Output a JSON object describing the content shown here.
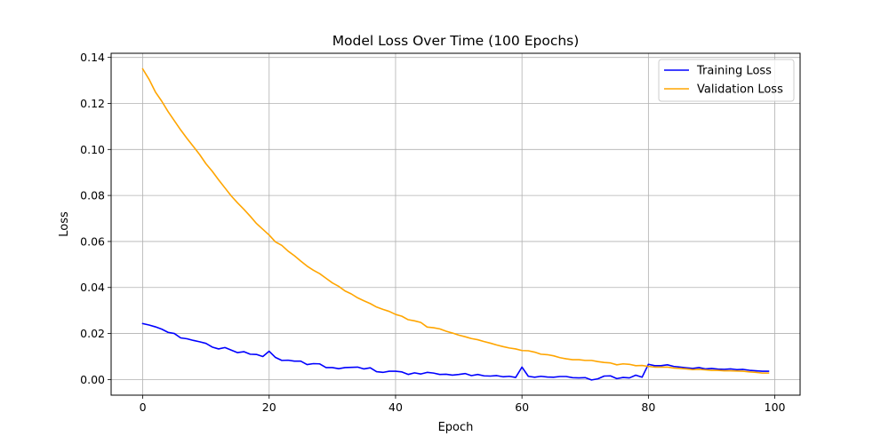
{
  "chart_data": {
    "type": "line",
    "title": "Model Loss Over Time (100 Epochs)",
    "xlabel": "Epoch",
    "ylabel": "Loss",
    "xlim": [
      -5,
      104
    ],
    "ylim": [
      -0.0068,
      0.1418
    ],
    "xticks": [
      0,
      20,
      40,
      60,
      80,
      100
    ],
    "xtick_labels": [
      "0",
      "20",
      "40",
      "60",
      "80",
      "100"
    ],
    "yticks": [
      0.0,
      0.02,
      0.04,
      0.06,
      0.08,
      0.1,
      0.12,
      0.14
    ],
    "ytick_labels": [
      "0.00",
      "0.02",
      "0.04",
      "0.06",
      "0.08",
      "0.10",
      "0.12",
      "0.14"
    ],
    "grid": true,
    "legend_position": "top-right",
    "x": [
      0,
      1,
      2,
      3,
      4,
      5,
      6,
      7,
      8,
      9,
      10,
      11,
      12,
      13,
      14,
      15,
      16,
      17,
      18,
      19,
      20,
      21,
      22,
      23,
      24,
      25,
      26,
      27,
      28,
      29,
      30,
      31,
      32,
      33,
      34,
      35,
      36,
      37,
      38,
      39,
      40,
      41,
      42,
      43,
      44,
      45,
      46,
      47,
      48,
      49,
      50,
      51,
      52,
      53,
      54,
      55,
      56,
      57,
      58,
      59,
      60,
      61,
      62,
      63,
      64,
      65,
      66,
      67,
      68,
      69,
      70,
      71,
      72,
      73,
      74,
      75,
      76,
      77,
      78,
      79,
      80,
      81,
      82,
      83,
      84,
      85,
      86,
      87,
      88,
      89,
      90,
      91,
      92,
      93,
      94,
      95,
      96,
      97,
      98,
      99
    ],
    "series": [
      {
        "name": "Training Loss",
        "color": "#0000ff",
        "values": [
          0.0243,
          0.0237,
          0.0229,
          0.0219,
          0.0205,
          0.02,
          0.0181,
          0.0177,
          0.017,
          0.0164,
          0.0157,
          0.0141,
          0.0133,
          0.0139,
          0.0128,
          0.0117,
          0.0121,
          0.011,
          0.0109,
          0.01,
          0.0123,
          0.0096,
          0.0083,
          0.0084,
          0.008,
          0.008,
          0.0065,
          0.0069,
          0.0068,
          0.0052,
          0.0052,
          0.0047,
          0.0052,
          0.0053,
          0.0054,
          0.0046,
          0.0051,
          0.0034,
          0.0031,
          0.0036,
          0.0036,
          0.0033,
          0.0022,
          0.0029,
          0.0024,
          0.0031,
          0.0028,
          0.0022,
          0.0023,
          0.0019,
          0.0022,
          0.0026,
          0.0017,
          0.0022,
          0.0016,
          0.0015,
          0.0017,
          0.0012,
          0.0014,
          0.0009,
          0.0054,
          0.0014,
          0.001,
          0.0014,
          0.0011,
          0.001,
          0.0013,
          0.0013,
          0.0008,
          0.0007,
          0.0008,
          -0.0002,
          0.0003,
          0.0015,
          0.0016,
          0.0004,
          0.0009,
          0.0007,
          0.0019,
          0.001,
          0.0066,
          0.006,
          0.006,
          0.0064,
          0.0057,
          0.0054,
          0.0051,
          0.0048,
          0.0052,
          0.0046,
          0.0048,
          0.0045,
          0.0044,
          0.0046,
          0.0043,
          0.0044,
          0.004,
          0.0038,
          0.0036,
          0.0036
        ]
      },
      {
        "name": "Validation Loss",
        "color": "#ffa500",
        "values": [
          0.135,
          0.1305,
          0.125,
          0.121,
          0.1165,
          0.1125,
          0.1085,
          0.1048,
          0.1013,
          0.0978,
          0.0938,
          0.0905,
          0.0868,
          0.0833,
          0.0798,
          0.0768,
          0.074,
          0.071,
          0.0678,
          0.0653,
          0.0628,
          0.0598,
          0.0583,
          0.0558,
          0.0538,
          0.0515,
          0.0493,
          0.0475,
          0.046,
          0.044,
          0.042,
          0.0405,
          0.0385,
          0.0372,
          0.0355,
          0.0342,
          0.033,
          0.0315,
          0.0305,
          0.0296,
          0.0283,
          0.0275,
          0.026,
          0.0255,
          0.0248,
          0.0228,
          0.0225,
          0.022,
          0.021,
          0.0202,
          0.0193,
          0.0186,
          0.0178,
          0.0173,
          0.0165,
          0.0158,
          0.015,
          0.0143,
          0.0137,
          0.0133,
          0.0126,
          0.0125,
          0.0119,
          0.011,
          0.0108,
          0.0103,
          0.0095,
          0.009,
          0.0086,
          0.0086,
          0.0083,
          0.0083,
          0.0078,
          0.0074,
          0.0072,
          0.0064,
          0.0068,
          0.0066,
          0.006,
          0.0061,
          0.0057,
          0.0054,
          0.0054,
          0.0054,
          0.005,
          0.0048,
          0.0046,
          0.0043,
          0.0044,
          0.0042,
          0.004,
          0.004,
          0.0038,
          0.0038,
          0.0037,
          0.0036,
          0.0033,
          0.0031,
          0.0028,
          0.0028
        ]
      }
    ]
  }
}
